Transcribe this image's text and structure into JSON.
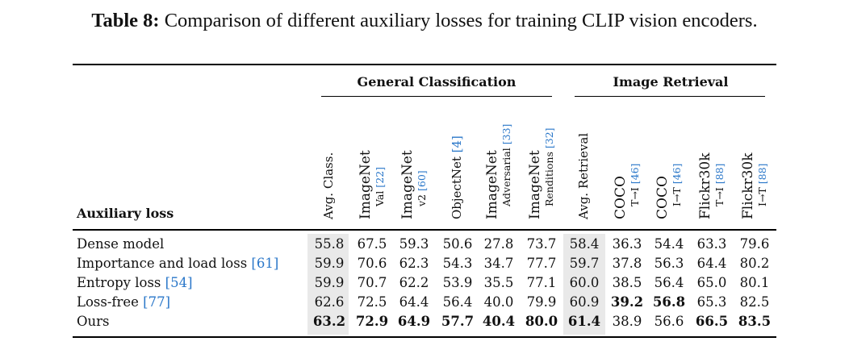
{
  "caption": {
    "label": "Table 8:",
    "text": "Comparison of different auxiliary losses for training CLIP vision encoders."
  },
  "groups": {
    "classification": "General Classification",
    "retrieval": "Image Retrieval"
  },
  "row_header": "Auxiliary loss",
  "columns": [
    {
      "main": "Avg. Class.",
      "sub": "",
      "cite": ""
    },
    {
      "main": "ImageNet",
      "sub": "Val",
      "cite": "[22]"
    },
    {
      "main": "ImageNet",
      "sub": "v2",
      "cite": "[60]"
    },
    {
      "main": "ObjectNet",
      "sub": "",
      "cite": "[4]"
    },
    {
      "main": "ImageNet",
      "sub": "Adversarial",
      "cite": "[33]"
    },
    {
      "main": "ImageNet",
      "sub": "Renditions",
      "cite": "[32]"
    },
    {
      "main": "Avg. Retrieval",
      "sub": "",
      "cite": ""
    },
    {
      "main": "COCO",
      "sub": "T→I",
      "cite": "[46]"
    },
    {
      "main": "COCO",
      "sub": "I→T",
      "cite": "[46]"
    },
    {
      "main": "Flickr30k",
      "sub": "T→I",
      "cite": "[88]"
    },
    {
      "main": "Flickr30k",
      "sub": "I→T",
      "cite": "[88]"
    }
  ],
  "rows": [
    {
      "label": "Dense model",
      "cite": "",
      "values": [
        "55.8",
        "67.5",
        "59.3",
        "50.6",
        "27.8",
        "73.7",
        "58.4",
        "36.3",
        "54.4",
        "63.3",
        "79.6"
      ],
      "bold": [
        false,
        false,
        false,
        false,
        false,
        false,
        false,
        false,
        false,
        false,
        false
      ]
    },
    {
      "label": "Importance and load loss",
      "cite": "[61]",
      "values": [
        "59.9",
        "70.6",
        "62.3",
        "54.3",
        "34.7",
        "77.7",
        "59.7",
        "37.8",
        "56.3",
        "64.4",
        "80.2"
      ],
      "bold": [
        false,
        false,
        false,
        false,
        false,
        false,
        false,
        false,
        false,
        false,
        false
      ]
    },
    {
      "label": "Entropy loss",
      "cite": "[54]",
      "values": [
        "59.9",
        "70.7",
        "62.2",
        "53.9",
        "35.5",
        "77.1",
        "60.0",
        "38.5",
        "56.4",
        "65.0",
        "80.1"
      ],
      "bold": [
        false,
        false,
        false,
        false,
        false,
        false,
        false,
        false,
        false,
        false,
        false
      ]
    },
    {
      "label": "Loss-free",
      "cite": "[77]",
      "values": [
        "62.6",
        "72.5",
        "64.4",
        "56.4",
        "40.0",
        "79.9",
        "60.9",
        "39.2",
        "56.8",
        "65.3",
        "82.5"
      ],
      "bold": [
        false,
        false,
        false,
        false,
        false,
        false,
        false,
        true,
        true,
        false,
        false
      ]
    },
    {
      "label": "Ours",
      "cite": "",
      "values": [
        "63.2",
        "72.9",
        "64.9",
        "57.7",
        "40.4",
        "80.0",
        "61.4",
        "38.9",
        "56.6",
        "66.5",
        "83.5"
      ],
      "bold": [
        true,
        true,
        true,
        true,
        true,
        true,
        true,
        false,
        false,
        true,
        true
      ]
    }
  ],
  "colors": {
    "citation": "#2a77c9",
    "shade": "#e9e9e9"
  }
}
